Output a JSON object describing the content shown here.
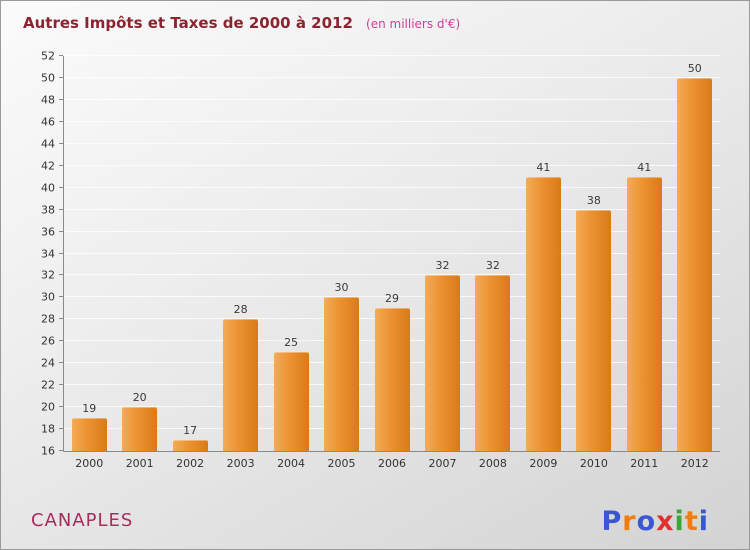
{
  "title": {
    "main": "Autres Impôts et Taxes de 2000 à 2012",
    "sub": "(en milliers d'€)"
  },
  "footer": {
    "location": "CANAPLES",
    "brand_letters": [
      {
        "ch": "P",
        "color": "#3a56d4"
      },
      {
        "ch": "r",
        "color": "#f07d12"
      },
      {
        "ch": "o",
        "color": "#3a56d4"
      },
      {
        "ch": "x",
        "color": "#e03030"
      },
      {
        "ch": "i",
        "color": "#3aa635"
      },
      {
        "ch": "t",
        "color": "#f07d12"
      },
      {
        "ch": "i",
        "color": "#3a56d4"
      }
    ]
  },
  "chart_data": {
    "type": "bar",
    "title": "Autres Impôts et Taxes de 2000 à 2012 (en milliers d'€)",
    "categories": [
      "2000",
      "2001",
      "2002",
      "2003",
      "2004",
      "2005",
      "2006",
      "2007",
      "2008",
      "2009",
      "2010",
      "2011",
      "2012"
    ],
    "values": [
      19,
      20,
      17,
      28,
      25,
      30,
      29,
      32,
      32,
      41,
      38,
      41,
      50
    ],
    "xlabel": "",
    "ylabel": "",
    "ylim": [
      16,
      52
    ],
    "ytick_step": 2,
    "grid": true,
    "legend": false,
    "bar_color_left": "#f4ab55",
    "bar_color_right": "#d97a18",
    "value_label_color": "#3a3a3a"
  }
}
